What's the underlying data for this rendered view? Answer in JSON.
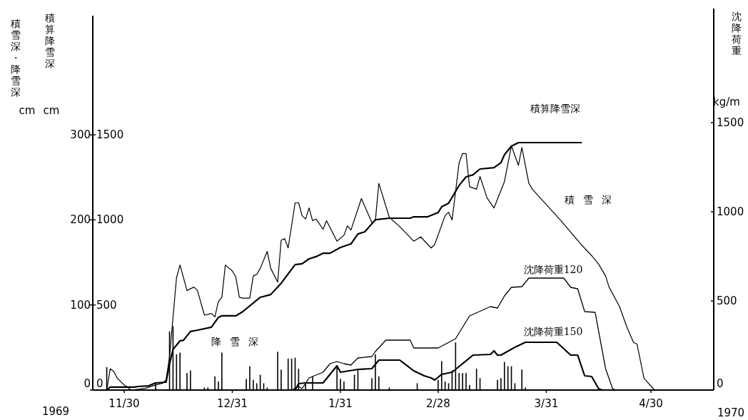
{
  "chart_data": {
    "type": "line",
    "ylabel": "積雪深・降雪深",
    "y3label": "積算降雪深",
    "y2label": "沈降荷重",
    "annotations": [
      "cm",
      "cm",
      "kg/m",
      "1969",
      "1970"
    ],
    "xlim": [
      "1969-11-21",
      "1970-05-18"
    ],
    "xticks": [
      {
        "value": "1969-11-30",
        "label": "11/30"
      },
      {
        "value": "1969-12-31",
        "label": "12/31"
      },
      {
        "value": "1970-01-31",
        "label": "1/31"
      },
      {
        "value": "1970-02-28",
        "label": "2/28"
      },
      {
        "value": "1970-03-31",
        "label": "3/31"
      },
      {
        "value": "1970-04-30",
        "label": "4/30"
      }
    ],
    "ylim": [
      0,
      440
    ],
    "yticks": [
      0,
      100,
      200,
      300
    ],
    "y3lim": [
      0,
      2200
    ],
    "y3ticks": [
      0,
      500,
      1000,
      1500
    ],
    "y2lim": [
      0,
      2100
    ],
    "y2ticks": [
      0,
      500,
      1000,
      1500
    ],
    "series": [
      {
        "name": "積算降雪深",
        "axis": "y3",
        "color": "#000000",
        "x": [
          "1969-11-25",
          "1969-11-26",
          "1969-12-03",
          "1969-12-04",
          "1969-12-07",
          "1969-12-09",
          "1969-12-12",
          "1969-12-13",
          "1969-12-14",
          "1969-12-16",
          "1969-12-17",
          "1969-12-19",
          "1969-12-21",
          "1969-12-25",
          "1969-12-27",
          "1969-12-28",
          "1970-01-01",
          "1970-01-03",
          "1970-01-08",
          "1970-01-11",
          "1970-01-14",
          "1970-01-18",
          "1970-01-20",
          "1970-01-22",
          "1970-01-24",
          "1970-01-26",
          "1970-01-28",
          "1970-01-31",
          "1970-02-03",
          "1970-02-05",
          "1970-02-07",
          "1970-02-10",
          "1970-02-14",
          "1970-02-20",
          "1970-02-21",
          "1970-02-25",
          "1970-02-28",
          "1970-03-01",
          "1970-03-03",
          "1970-03-06",
          "1970-03-08",
          "1970-03-10",
          "1970-03-12",
          "1970-03-16",
          "1970-03-18",
          "1970-03-19",
          "1970-03-21",
          "1970-03-23",
          "1970-04-10"
        ],
        "values": [
          0,
          17,
          17,
          21,
          25,
          42,
          46,
          155,
          239,
          289,
          293,
          344,
          352,
          369,
          427,
          436,
          436,
          461,
          545,
          561,
          628,
          737,
          742,
          771,
          784,
          804,
          804,
          838,
          859,
          917,
          930,
          1001,
          1010,
          1010,
          1018,
          1018,
          1043,
          1077,
          1098,
          1202,
          1253,
          1265,
          1299,
          1307,
          1336,
          1383,
          1433,
          1454,
          1454
        ]
      },
      {
        "name": "積雪深",
        "axis": "y",
        "color": "#000000",
        "x": [
          "1969-11-25",
          "1969-11-26",
          "1969-11-27",
          "1969-11-28",
          "1969-11-30",
          "1969-12-02",
          "1969-12-06",
          "1969-12-09",
          "1969-12-11",
          "1969-12-12",
          "1969-12-13",
          "1969-12-15",
          "1969-12-16",
          "1969-12-18",
          "1969-12-20",
          "1969-12-21",
          "1969-12-23",
          "1969-12-25",
          "1969-12-26",
          "1969-12-27",
          "1969-12-28",
          "1969-12-29",
          "1969-12-31",
          "1970-01-01",
          "1970-01-02",
          "1970-01-03",
          "1970-01-05",
          "1970-01-06",
          "1970-01-07",
          "1970-01-08",
          "1970-01-10",
          "1970-01-11",
          "1970-01-13",
          "1970-01-14",
          "1970-01-15",
          "1970-01-16",
          "1970-01-18",
          "1970-01-19",
          "1970-01-20",
          "1970-01-21",
          "1970-01-22",
          "1970-01-23",
          "1970-01-24",
          "1970-01-26",
          "1970-01-27",
          "1970-01-30",
          "1970-02-01",
          "1970-02-02",
          "1970-02-03",
          "1970-02-06",
          "1970-02-09",
          "1970-02-10",
          "1970-02-11",
          "1970-02-14",
          "1970-02-17",
          "1970-02-21",
          "1970-02-23",
          "1970-02-26",
          "1970-02-27",
          "1970-03-02",
          "1970-03-03",
          "1970-03-04",
          "1970-03-06",
          "1970-03-07",
          "1970-03-08",
          "1970-03-09",
          "1970-03-11",
          "1970-03-12",
          "1970-03-14",
          "1970-03-16",
          "1970-03-19",
          "1970-03-21",
          "1970-03-23",
          "1970-03-24",
          "1970-03-26",
          "1970-03-27",
          "1970-03-31",
          "1970-04-04",
          "1970-04-10",
          "1970-04-13",
          "1970-04-15",
          "1970-04-17",
          "1970-04-18",
          "1970-04-21",
          "1970-04-23",
          "1970-04-25",
          "1970-04-26",
          "1970-04-28",
          "1970-05-01"
        ],
        "values": [
          0,
          25,
          22,
          14,
          6,
          0,
          2,
          6,
          8,
          12,
          39,
          132,
          147,
          117,
          121,
          117,
          88,
          90,
          86,
          104,
          109,
          147,
          140,
          133,
          109,
          108,
          108,
          134,
          136,
          143,
          163,
          143,
          127,
          176,
          178,
          167,
          220,
          220,
          205,
          201,
          214,
          199,
          201,
          189,
          199,
          175,
          182,
          193,
          188,
          225,
          197,
          199,
          243,
          203,
          192,
          175,
          180,
          167,
          171,
          205,
          209,
          200,
          267,
          278,
          278,
          239,
          236,
          251,
          226,
          214,
          245,
          287,
          264,
          285,
          243,
          236,
          218,
          200,
          171,
          158,
          148,
          134,
          121,
          98,
          75,
          56,
          54,
          14,
          0
        ]
      },
      {
        "name": "沈降荷重120",
        "axis": "y2",
        "color": "#000000",
        "x": [
          "1970-01-17",
          "1970-01-19",
          "1970-01-20",
          "1970-01-22",
          "1970-01-26",
          "1970-01-28",
          "1970-01-30",
          "1970-02-01",
          "1970-02-03",
          "1970-02-05",
          "1970-02-09",
          "1970-02-10",
          "1970-02-13",
          "1970-02-20",
          "1970-02-21",
          "1970-02-28",
          "1970-03-05",
          "1970-03-09",
          "1970-03-15",
          "1970-03-17",
          "1970-03-19",
          "1970-03-21",
          "1970-03-24",
          "1970-03-26",
          "1970-04-05",
          "1970-04-07",
          "1970-04-09",
          "1970-04-11",
          "1970-04-14",
          "1970-04-17",
          "1970-04-19",
          "1970-04-20"
        ],
        "values": [
          0,
          20,
          8,
          68,
          100,
          148,
          160,
          148,
          140,
          180,
          188,
          216,
          280,
          280,
          236,
          236,
          288,
          416,
          468,
          460,
          528,
          576,
          580,
          628,
          628,
          576,
          568,
          440,
          436,
          120,
          8,
          0
        ]
      },
      {
        "name": "沈降荷重150",
        "axis": "y2",
        "color": "#000000",
        "x": [
          "1970-01-18",
          "1970-01-19",
          "1970-01-21",
          "1970-01-26",
          "1970-01-28",
          "1970-01-30",
          "1970-01-31",
          "1970-02-05",
          "1970-02-09",
          "1970-02-11",
          "1970-02-17",
          "1970-02-21",
          "1970-02-24",
          "1970-02-26",
          "1970-02-27",
          "1970-03-01",
          "1970-03-04",
          "1970-03-10",
          "1970-03-15",
          "1970-03-16",
          "1970-03-17",
          "1970-03-18",
          "1970-03-22",
          "1970-03-25",
          "1970-04-03",
          "1970-04-07",
          "1970-04-09",
          "1970-04-11",
          "1970-04-13",
          "1970-04-15",
          "1970-04-16"
        ],
        "values": [
          0,
          36,
          40,
          40,
          88,
          136,
          100,
          116,
          120,
          168,
          168,
          108,
          80,
          68,
          56,
          88,
          100,
          196,
          200,
          220,
          196,
          196,
          240,
          268,
          268,
          196,
          196,
          80,
          76,
          8,
          0
        ]
      },
      {
        "name": "降雪深",
        "type": "bar",
        "axis": "y",
        "color": "#000000",
        "x": [
          "1969-11-25",
          "1969-12-09",
          "1969-12-13",
          "1969-12-14",
          "1969-12-15",
          "1969-12-16",
          "1969-12-18",
          "1969-12-19",
          "1969-12-23",
          "1969-12-24",
          "1969-12-26",
          "1969-12-27",
          "1969-12-28",
          "1970-01-04",
          "1970-01-05",
          "1970-01-06",
          "1970-01-07",
          "1970-01-08",
          "1970-01-09",
          "1970-01-10",
          "1970-01-13",
          "1970-01-14",
          "1970-01-16",
          "1970-01-17",
          "1970-01-18",
          "1970-01-19",
          "1970-01-21",
          "1970-01-23",
          "1970-01-30",
          "1970-01-31",
          "1970-02-01",
          "1970-02-04",
          "1970-02-05",
          "1970-02-09",
          "1970-02-10",
          "1970-02-11",
          "1970-02-14",
          "1970-02-22",
          "1970-02-28",
          "1970-03-01",
          "1970-03-02",
          "1970-03-03",
          "1970-03-04",
          "1970-03-05",
          "1970-03-06",
          "1970-03-07",
          "1970-03-08",
          "1970-03-09",
          "1970-03-11",
          "1970-03-12",
          "1970-03-17",
          "1970-03-18",
          "1970-03-19",
          "1970-03-20",
          "1970-03-21",
          "1970-03-22",
          "1970-03-24",
          "1970-03-25"
        ],
        "values": [
          27,
          8,
          69,
          75,
          42,
          44,
          20,
          23,
          3,
          3,
          16,
          10,
          44,
          13,
          28,
          12,
          8,
          18,
          8,
          3,
          45,
          24,
          37,
          37,
          38,
          25,
          8,
          16,
          29,
          13,
          10,
          18,
          24,
          14,
          42,
          16,
          3,
          8,
          12,
          34,
          10,
          8,
          23,
          56,
          20,
          20,
          20,
          6,
          25,
          14,
          12,
          14,
          33,
          28,
          28,
          8,
          24,
          3
        ]
      }
    ]
  }
}
